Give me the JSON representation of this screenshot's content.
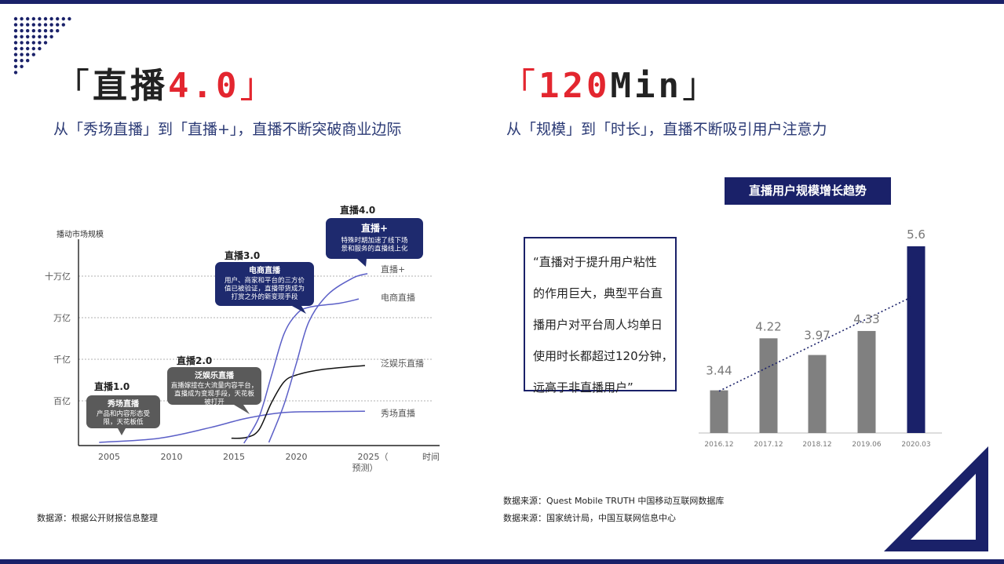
{
  "left": {
    "title_bracket_open": "「",
    "title_text": "直播",
    "title_version": "4.0",
    "title_bracket_close": "」",
    "subtitle": "从「秀场直播」到「直播+」，直播不断突破商业边际",
    "source": "数据源：根据公开财报信息整理"
  },
  "right": {
    "title_bracket_open": "「",
    "title_number": "120",
    "title_unit": "Min",
    "title_bracket_close": "」",
    "subtitle": "从「规模」到「时长」，直播不断吸引用户注意力",
    "quote_lines": [
      "“直播对于提升用户粘性",
      "的作用巨大，典型平台直",
      "播用户对平台周人均单日",
      "使用时长都超过120分钟，",
      "远高于非直播用户”"
    ],
    "sources": [
      "数据来源：Quest Mobile TRUTH 中国移动互联网数据库",
      "数据来源：国家统计局，中国互联网信息中心"
    ]
  },
  "colors": {
    "navy": "#1a2169",
    "red": "#e3262f",
    "gray_bar": "#808080",
    "callout_navy": "#1e2a6e",
    "callout_gray": "#5a5a5a",
    "curve_purple": "#5b5fc7",
    "curve_black": "#111111"
  },
  "chart_data": [
    {
      "type": "line",
      "ylabel": "播动市场规模",
      "xlabel": "时间",
      "x_ticks": [
        "2005",
        "2010",
        "2015",
        "2020",
        "2025（预测）"
      ],
      "y_ticks": [
        "百亿",
        "千亿",
        "万亿",
        "十万亿"
      ],
      "series": [
        {
          "name": "秀场直播",
          "color": "#5b5fc7",
          "points": [
            [
              2004.2,
              0.0
            ],
            [
              2009,
              0.1
            ],
            [
              2013,
              0.35
            ],
            [
              2016,
              0.58
            ],
            [
              2019,
              0.72
            ],
            [
              2022,
              0.74
            ],
            [
              2025.5,
              0.75
            ]
          ]
        },
        {
          "name": "泛娱乐直播",
          "color": "#111111",
          "points": [
            [
              2014.8,
              0.1
            ],
            [
              2016,
              0.12
            ],
            [
              2017,
              0.3
            ],
            [
              2018,
              0.95
            ],
            [
              2019,
              1.45
            ],
            [
              2020,
              1.62
            ],
            [
              2022,
              1.75
            ],
            [
              2025.5,
              1.85
            ]
          ]
        },
        {
          "name": "电商直播",
          "color": "#5b5fc7",
          "points": [
            [
              2015.8,
              -0.02
            ],
            [
              2017,
              0.6
            ],
            [
              2018,
              1.6
            ],
            [
              2019,
              2.6
            ],
            [
              2020,
              3.08
            ],
            [
              2021,
              3.25
            ],
            [
              2023.5,
              3.35
            ],
            [
              2025,
              3.45
            ]
          ]
        },
        {
          "name": "直播+",
          "color": "#5b5fc7",
          "points": [
            [
              2017.8,
              0.0
            ],
            [
              2019,
              0.9
            ],
            [
              2020,
              1.9
            ],
            [
              2021,
              2.9
            ],
            [
              2022.5,
              3.55
            ],
            [
              2024.5,
              3.95
            ],
            [
              2025.7,
              4.06
            ]
          ]
        }
      ],
      "stages": [
        {
          "stage": "直播1.0",
          "heading": "秀场直播",
          "lines": [
            "产品和内容形态受",
            "限，天花板低"
          ],
          "style": "gray"
        },
        {
          "stage": "直播2.0",
          "heading": "泛娱乐直播",
          "lines": [
            "直播嫁接在大流量内容平台，",
            "直播成为变现手段，天花板",
            "被打开"
          ],
          "style": "gray"
        },
        {
          "stage": "直播3.0",
          "heading": "电商直播",
          "lines": [
            "用户、商家和平台的三方价",
            "值已被验证，直播带货成为",
            "打赏之外的新变现手段"
          ],
          "style": "navy"
        },
        {
          "stage": "直播4.0",
          "heading": "直播+",
          "lines": [
            "特殊时期加速了线下场",
            "景和服务的直播线上化"
          ],
          "style": "navy"
        }
      ]
    },
    {
      "type": "bar",
      "title": "直播用户规模增长趋势",
      "categories": [
        "2016.12",
        "2017.12",
        "2018.12",
        "2019.06",
        "2020.03"
      ],
      "values": [
        3.44,
        4.22,
        3.97,
        4.33,
        5.6
      ],
      "highlight_index": 4,
      "trendline": "dotted"
    }
  ]
}
